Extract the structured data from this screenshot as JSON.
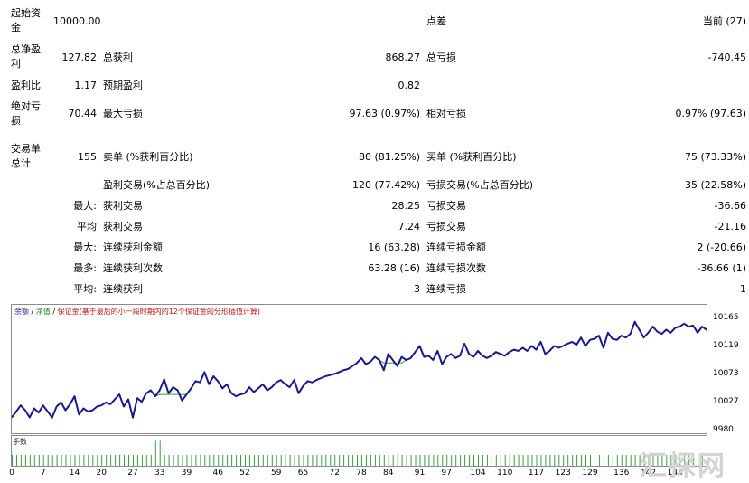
{
  "stats": {
    "initial_deposit": {
      "label": "起始资金",
      "value": "10000.00"
    },
    "spread": {
      "label": "点差",
      "value": "当前 (27)"
    },
    "total_net_profit": {
      "label": "总净盈利",
      "value": "127.82"
    },
    "gross_profit": {
      "label": "总获利",
      "value": "868.27"
    },
    "gross_loss": {
      "label": "总亏损",
      "value": "-740.45"
    },
    "profit_factor": {
      "label": "盈利比",
      "value": "1.17"
    },
    "expected_payoff": {
      "label": "预期盈利",
      "value": "0.82"
    },
    "absolute_drawdown": {
      "label": "绝对亏损",
      "value": "70.44"
    },
    "maximal_drawdown": {
      "label": "最大亏损",
      "value": "97.63 (0.97%)"
    },
    "relative_drawdown": {
      "label": "相对亏损",
      "value": "0.97% (97.63)"
    },
    "total_trades": {
      "label": "交易单总计",
      "value": "155"
    },
    "short_positions": {
      "label": "卖单 (%获利百分比)",
      "value": "80 (81.25%)"
    },
    "long_positions": {
      "label": "买单 (%获利百分比)",
      "value": "75 (73.33%)"
    },
    "profit_trades": {
      "label": "盈利交易(%占总百分比)",
      "value": "120 (77.42%)"
    },
    "loss_trades": {
      "label": "亏损交易(%占总百分比)",
      "value": "35 (22.58%)"
    },
    "largest": {
      "label": "最大:",
      "profit_label": "获利交易",
      "profit_value": "28.25",
      "loss_label": "亏损交易",
      "loss_value": "-36.66"
    },
    "average": {
      "label": "平均",
      "profit_label": "获利交易",
      "profit_value": "7.24",
      "loss_label": "亏损交易",
      "loss_value": "-21.16"
    },
    "max_consecutive": {
      "label": "最大:",
      "profit_label": "连续获利金额",
      "profit_value": "16 (63.28)",
      "loss_label": "连续亏损金额",
      "loss_value": "2 (-20.66)"
    },
    "maximal_consecutive": {
      "label": "最多:",
      "profit_label": "连续获利次数",
      "profit_value": "63.28 (16)",
      "loss_label": "连续亏损次数",
      "loss_value": "-36.66 (1)"
    },
    "average_consecutive": {
      "label": "平均:",
      "profit_label": "连续获利",
      "profit_value": "3",
      "loss_label": "连续亏损",
      "loss_value": "1"
    }
  },
  "chart_legend": {
    "balance": "余额",
    "equity": "净值",
    "margin": "保证金(基于最后的小一段时期内的12个保证金的分形插值计算)"
  },
  "colors": {
    "balance": "#1a1a8c",
    "equity": "#2e9e2e",
    "volume": "#3aa03a"
  },
  "volume_label": "手数",
  "watermark": "汇探网",
  "chart_data": {
    "type": "line",
    "y_ticks": [
      "10165",
      "10119",
      "10073",
      "10027",
      "9980"
    ],
    "x_ticks": [
      "0",
      "7",
      "14",
      "20",
      "27",
      "33",
      "39",
      "46",
      "52",
      "59",
      "65",
      "72",
      "78",
      "84",
      "91",
      "97",
      "104",
      "110",
      "117",
      "123",
      "129",
      "136",
      "142",
      "148"
    ],
    "ylim": [
      9980,
      10180
    ],
    "xlim": [
      0,
      155
    ],
    "series": [
      {
        "name": "余额",
        "values": [
          10000,
          10010,
          10020,
          10012,
          10000,
          10015,
          10008,
          10020,
          10010,
          10000,
          10018,
          10025,
          10012,
          10022,
          10035,
          10005,
          10015,
          10010,
          10012,
          10018,
          10020,
          10025,
          10022,
          10030,
          10038,
          10018,
          10030,
          10000,
          10032,
          10026,
          10040,
          10045,
          10035,
          10045,
          10063,
          10040,
          10050,
          10045,
          10028,
          10038,
          10048,
          10060,
          10058,
          10075,
          10055,
          10068,
          10060,
          10048,
          10055,
          10040,
          10035,
          10038,
          10040,
          10050,
          10042,
          10048,
          10055,
          10045,
          10050,
          10058,
          10062,
          10055,
          10050,
          10062,
          10040,
          10052,
          10060,
          10058,
          10062,
          10065,
          10068,
          10070,
          10072,
          10075,
          10078,
          10080,
          10085,
          10090,
          10098,
          10088,
          10092,
          10100,
          10095,
          10078,
          10105,
          10095,
          10085,
          10100,
          10095,
          10098,
          10108,
          10118,
          10100,
          10102,
          10095,
          10110,
          10088,
          10100,
          10105,
          10098,
          10102,
          10122,
          10105,
          10100,
          10110,
          10102,
          10098,
          10102,
          10108,
          10105,
          10102,
          10108,
          10112,
          10110,
          10115,
          10110,
          10118,
          10112,
          10125,
          10105,
          10110,
          10118,
          10115,
          10118,
          10122,
          10125,
          10120,
          10132,
          10118,
          10128,
          10130,
          10135,
          10115,
          10140,
          10130,
          10128,
          10135,
          10132,
          10138,
          10158,
          10145,
          10132,
          10140,
          10150,
          10142,
          10138,
          10145,
          10140,
          10148,
          10150,
          10155,
          10150,
          10152,
          10140,
          10150,
          10145,
          10148,
          10150,
          10155,
          10148,
          10120,
          10130,
          10108,
          10125
        ]
      },
      {
        "name": "净值",
        "values": [
          10000,
          10010,
          10020,
          10012,
          10000,
          10015,
          10008,
          10020,
          10010,
          10000,
          10018,
          10025,
          10012,
          10022,
          10035,
          10005,
          10015,
          10010,
          10012,
          10018,
          10020,
          10025,
          10022,
          10030,
          10038,
          10018,
          10030,
          10000,
          10032,
          10026,
          10040,
          10045,
          10035,
          10038,
          10038,
          10038,
          10038,
          10038,
          10038,
          10038,
          10048,
          10060,
          10058,
          10075,
          10055,
          10068,
          10060,
          10048,
          10055,
          10040,
          10035,
          10038,
          10040,
          10050,
          10042,
          10048,
          10055,
          10045,
          10050,
          10058,
          10062,
          10055,
          10050,
          10062,
          10040,
          10052,
          10060,
          10058,
          10062,
          10065,
          10068,
          10070,
          10072,
          10075,
          10078,
          10080,
          10085,
          10090,
          10098,
          10088,
          10092,
          10100,
          10095,
          10090,
          10090,
          10090,
          10090,
          10090,
          10095,
          10098,
          10108,
          10118,
          10100,
          10102,
          10095,
          10110,
          10088,
          10100,
          10105,
          10098,
          10102,
          10122,
          10105,
          10100,
          10110,
          10102,
          10098,
          10102,
          10108,
          10105,
          10102,
          10108,
          10112,
          10110,
          10115,
          10110,
          10118,
          10112,
          10125,
          10105,
          10110,
          10118,
          10115,
          10118,
          10122,
          10125,
          10120,
          10132,
          10118,
          10128,
          10130,
          10135,
          10115,
          10140,
          10130,
          10128,
          10135,
          10132,
          10138,
          10158,
          10145,
          10132,
          10140,
          10150,
          10142,
          10138,
          10145,
          10140,
          10148,
          10150,
          10155,
          10150,
          10152,
          10140,
          10150,
          10145,
          10148,
          10150,
          10132,
          10130,
          10120,
          10130,
          10108,
          10125
        ]
      }
    ],
    "volume": {
      "name": "手数",
      "base": 1,
      "spikes": {
        "32": 2.3,
        "33": 2.3
      }
    }
  }
}
